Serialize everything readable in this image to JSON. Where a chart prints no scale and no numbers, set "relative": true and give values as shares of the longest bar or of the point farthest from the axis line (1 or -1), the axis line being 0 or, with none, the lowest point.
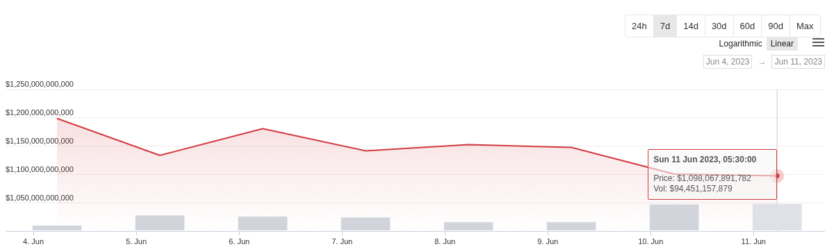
{
  "chart_data": [
    {
      "type": "area",
      "x": [
        "2023-06-04T05:30",
        "2023-06-05T05:30",
        "2023-06-06T05:30",
        "2023-06-07T05:30",
        "2023-06-08T05:30",
        "2023-06-09T05:30",
        "2023-06-10T05:30",
        "2023-06-11T05:30"
      ],
      "series": [
        {
          "color": "#d33a3f",
          "values": [
            1199000000000,
            1134000000000,
            1181000000000,
            1142000000000,
            1153000000000,
            1148000000000,
            1101000000000,
            1098067891782
          ]
        }
      ],
      "xlim": [
        "2023-06-03T17:30",
        "2023-06-11T16:30"
      ],
      "xticks": [
        {
          "value": "2023-06-04",
          "label": "4. Jun"
        },
        {
          "value": "2023-06-05",
          "label": "5. Jun"
        },
        {
          "value": "2023-06-06",
          "label": "6. Jun"
        },
        {
          "value": "2023-06-07",
          "label": "7. Jun"
        },
        {
          "value": "2023-06-08",
          "label": "8. Jun"
        },
        {
          "value": "2023-06-09",
          "label": "9. Jun"
        },
        {
          "value": "2023-06-10",
          "label": "10. Jun"
        },
        {
          "value": "2023-06-11",
          "label": "11. Jun"
        }
      ],
      "ylim": [
        1000000000000,
        1250000000000
      ],
      "yticks": [
        {
          "value": 1050000000000,
          "label": "$1,050,000,000,000"
        },
        {
          "value": 1100000000000,
          "label": "$1,100,000,000,000"
        },
        {
          "value": 1150000000000,
          "label": "$1,150,000,000,000"
        },
        {
          "value": 1200000000000,
          "label": "$1,200,000,000,000"
        },
        {
          "value": 1250000000000,
          "label": "$1,250,000,000,000"
        }
      ],
      "grid": "y",
      "ref_lines": [
        {
          "axis": "x",
          "value": "2023-06-11T05:30",
          "color": "#cccccc"
        }
      ],
      "annotations": [
        "24h",
        "7d",
        "14d",
        "30d",
        "60d",
        "90d",
        "Max",
        "Logarithmic",
        "Linear",
        "Jun 4, 2023",
        "→",
        "Jun 11, 2023",
        {
          "text": "Sun 11 Jun 2023, 05:30:00\nPrice: $1,098,067,891,782\nVol: $94,451,157,879",
          "x": "2023-06-11T05:30",
          "y": 1098067891782
        }
      ]
    },
    {
      "type": "bar",
      "relative": true,
      "tick_labels": false,
      "x": [
        "2023-06-04T05:30",
        "2023-06-05T05:30",
        "2023-06-06T05:30",
        "2023-06-07T05:30",
        "2023-06-08T05:30",
        "2023-06-09T05:30",
        "2023-06-10T05:30",
        "2023-06-11T05:30"
      ],
      "xlim": [
        "2023-06-03T17:30",
        "2023-06-11T16:30"
      ],
      "colors": [
        "#d1d5db",
        "#d1d5db",
        "#d1d5db",
        "#d1d5db",
        "#d1d5db",
        "#d1d5db",
        "#d1d5db",
        "#dfe1e6"
      ],
      "values": [
        0.17,
        0.56,
        0.51,
        0.48,
        0.3,
        0.3,
        0.97,
        1
      ]
    }
  ]
}
